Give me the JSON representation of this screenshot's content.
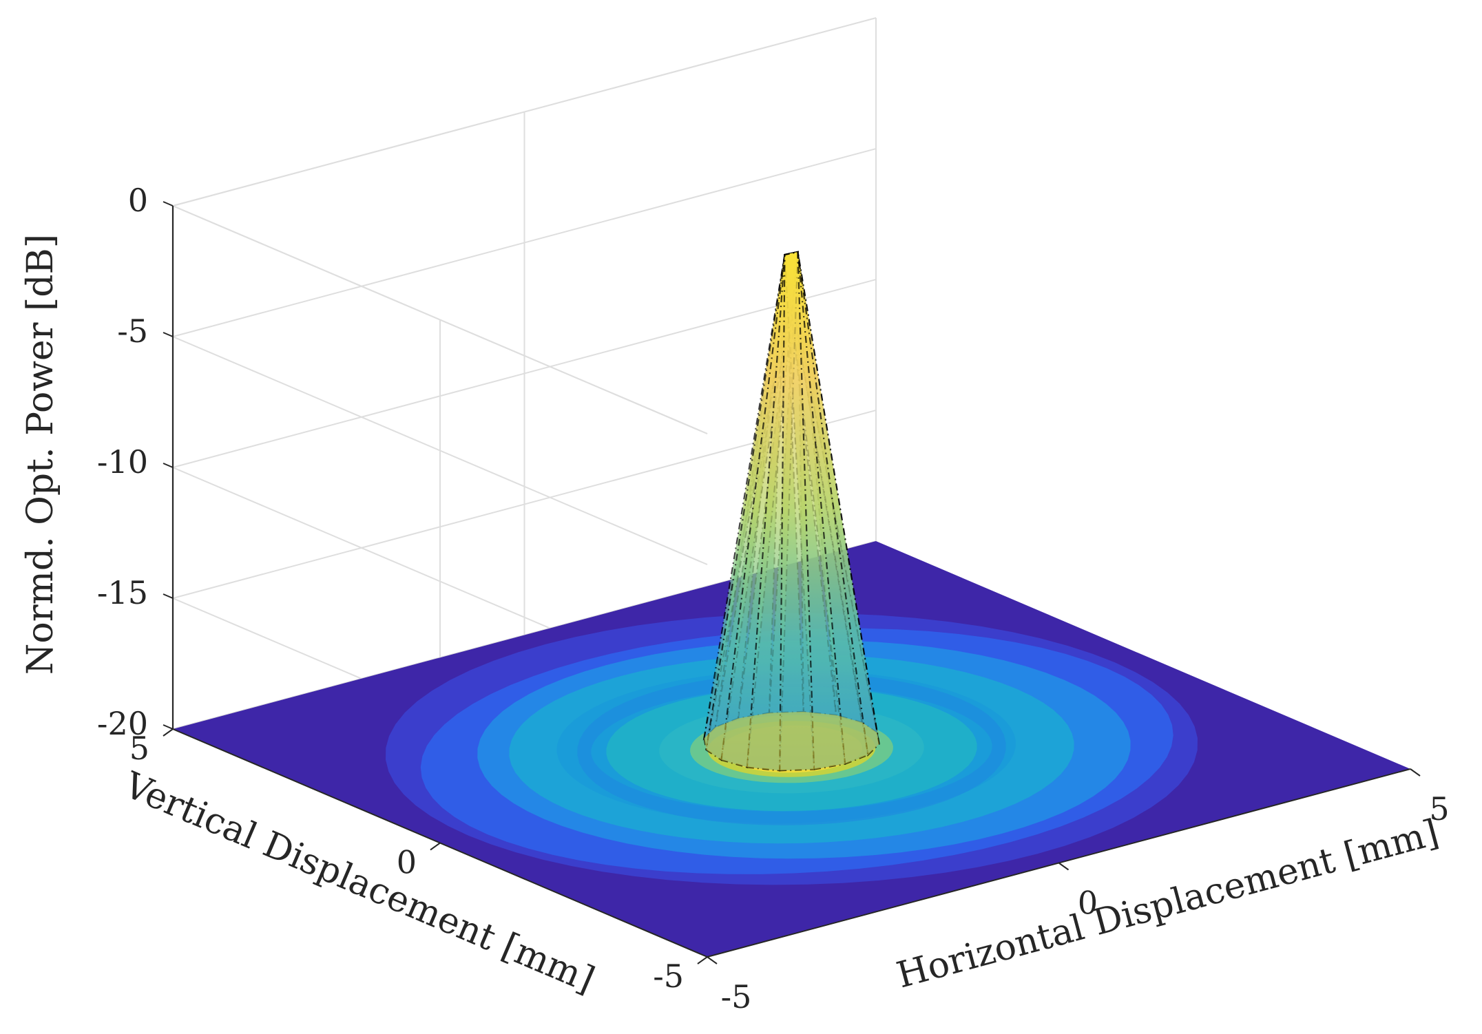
{
  "chart_data": {
    "type": "surface",
    "title": "",
    "xlabel": "Horizontal Displacement [mm]",
    "ylabel": "Vertical Displacement [mm]",
    "zlabel": "Normd. Opt. Power [dB]",
    "xlim": [
      -5,
      5
    ],
    "ylim": [
      -5,
      5
    ],
    "zlim": [
      -20,
      0
    ],
    "x_ticks": [
      "-5",
      "0",
      "5"
    ],
    "y_ticks": [
      "-5",
      "0",
      "5"
    ],
    "z_ticks": [
      "-20",
      "-15",
      "-10",
      "-5",
      "0"
    ],
    "grid": true,
    "colormap": "parula",
    "floor_level_db": -20,
    "peak": {
      "x": 0,
      "y": 0,
      "z": -1,
      "base_radius_mm": 1.0
    },
    "colors": {
      "low": "#3e26a8",
      "mid": "#1ab8c8",
      "high": "#f9e236",
      "grid": "#dedede",
      "axis": "#262626"
    }
  }
}
